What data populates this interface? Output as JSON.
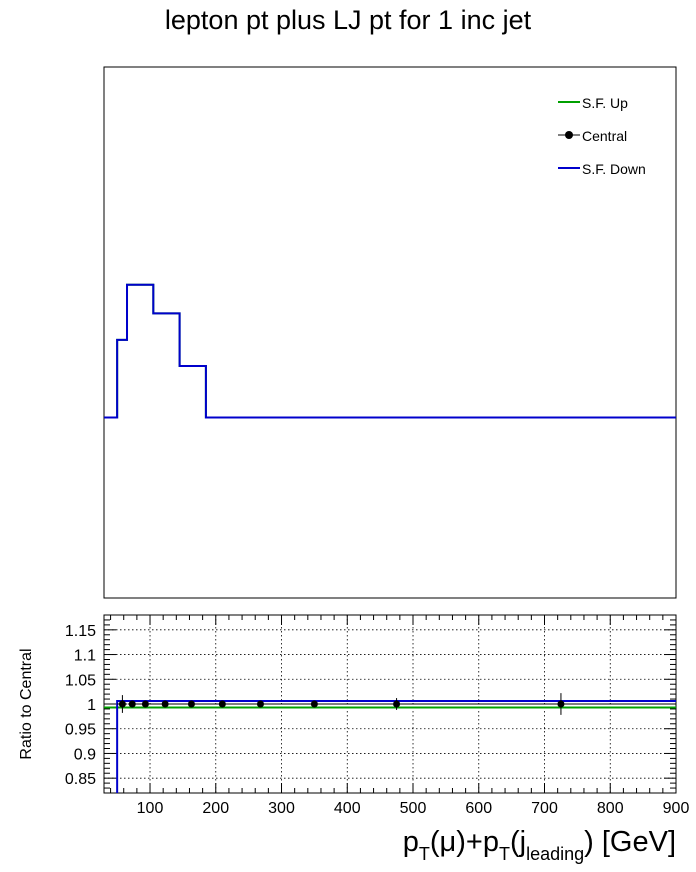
{
  "chart_data": {
    "type": "line",
    "title": "lepton pt plus LJ pt for 1 inc jet",
    "legend": {
      "placement": "top-right",
      "entries": [
        {
          "label": "S.F. Up",
          "color": "#00a000",
          "style": "line"
        },
        {
          "label": "Central",
          "color": "#000000",
          "style": "marker"
        },
        {
          "label": "S.F. Down",
          "color": "#0000cc",
          "style": "line"
        }
      ]
    },
    "upper_panel": {
      "yscale": "relative",
      "baseline_fraction": 0.66,
      "bin_edges": [
        30,
        50,
        65,
        105,
        145,
        185,
        900
      ],
      "heights_fraction": [
        0.0,
        0.146,
        0.25,
        0.196,
        0.097,
        0.0
      ],
      "series": [
        {
          "name": "S.F. Up",
          "color": "#00a000"
        },
        {
          "name": "Central",
          "color": "#000000"
        },
        {
          "name": "S.F. Down",
          "color": "#0000cc"
        }
      ]
    },
    "lower_panel": {
      "ylabel": "Ratio to Central",
      "xlabel_parts": {
        "p": "p",
        "T": "T",
        "mu": "(μ)+",
        "p2": "p",
        "T2": "T",
        "j": "(j",
        "leading": "leading",
        "gev": ") [GeV]"
      },
      "xlim": [
        30,
        900
      ],
      "ylim": [
        0.82,
        1.18
      ],
      "x_ticks": [
        100,
        200,
        300,
        400,
        500,
        600,
        700,
        800,
        900
      ],
      "x_tick_labels": [
        "100",
        "200",
        "300",
        "400",
        "500",
        "600",
        "700",
        "800",
        "900"
      ],
      "y_ticks": [
        0.85,
        0.9,
        0.95,
        1.0,
        1.05,
        1.1,
        1.15
      ],
      "y_tick_labels": [
        "0.85",
        "0.9",
        "0.95",
        "1",
        "1.05",
        "1.1",
        "1.15"
      ],
      "grid": true,
      "central_points": {
        "x": [
          58,
          73,
          93,
          123,
          163,
          210,
          268,
          350,
          475,
          725
        ],
        "y": [
          1,
          1,
          1,
          1,
          1,
          1,
          1,
          1,
          1,
          1
        ],
        "xerr_low": [
          8,
          7,
          13,
          17,
          23,
          25,
          33,
          50,
          75,
          175
        ],
        "xerr_high": [
          7,
          13,
          17,
          23,
          25,
          33,
          50,
          75,
          175,
          175
        ],
        "yerr": [
          0.018,
          0,
          0,
          0,
          0,
          0,
          0,
          0,
          0.012,
          0.022
        ]
      },
      "sf_up_ratio": 0.993,
      "sf_down_ratio": 1.006,
      "sf_down_start_x": 50
    }
  }
}
